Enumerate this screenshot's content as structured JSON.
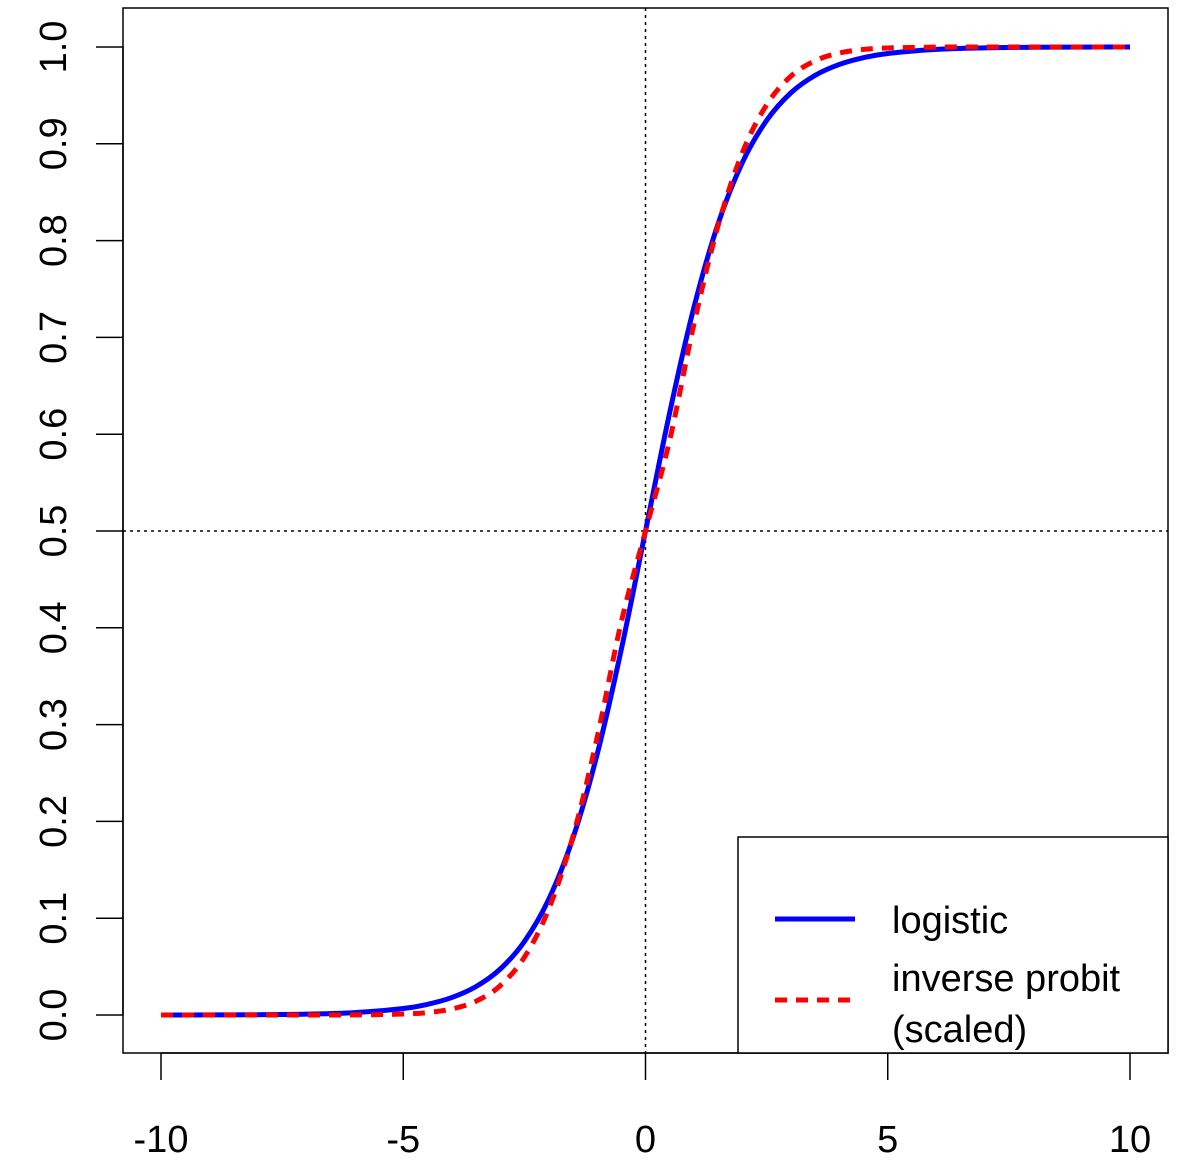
{
  "chart_data": {
    "type": "line",
    "title": "",
    "xlabel": "",
    "ylabel": "",
    "xlim": [
      -10,
      10
    ],
    "ylim": [
      0,
      1
    ],
    "x_ticks": [
      -10,
      -5,
      0,
      5,
      10
    ],
    "x_tick_labels": [
      "-10",
      "-5",
      "0",
      "5",
      "10"
    ],
    "y_ticks": [
      0,
      0.1,
      0.2,
      0.3,
      0.4,
      0.5,
      0.6,
      0.7,
      0.8,
      0.9,
      1.0
    ],
    "y_tick_labels": [
      "0.0",
      "0.1",
      "0.2",
      "0.3",
      "0.4",
      "0.5",
      "0.6",
      "0.7",
      "0.8",
      "0.9",
      "1.0"
    ],
    "reference_lines": [
      {
        "orientation": "vertical",
        "x": 0,
        "style": "dotted"
      },
      {
        "orientation": "horizontal",
        "y": 0.5,
        "style": "dotted"
      }
    ],
    "grid": false,
    "legend": {
      "position": "bottom-right",
      "entries": [
        {
          "label": "logistic",
          "color": "#0000ff",
          "style": "solid"
        },
        {
          "label": "inverse probit",
          "label_line2": "(scaled)",
          "color": "#ff0000",
          "style": "dashed"
        }
      ]
    },
    "series": [
      {
        "name": "logistic",
        "color": "#0000ff",
        "style": "solid",
        "x": [
          -10,
          -9,
          -8,
          -7,
          -6,
          -5,
          -4.5,
          -4,
          -3.5,
          -3,
          -2.5,
          -2,
          -1.5,
          -1,
          -0.5,
          0,
          0.5,
          1,
          1.5,
          2,
          2.5,
          3,
          3.5,
          4,
          4.5,
          5,
          6,
          7,
          8,
          9,
          10
        ],
        "y": [
          0.0,
          0.0001,
          0.0003,
          0.0009,
          0.0025,
          0.0067,
          0.011,
          0.018,
          0.0293,
          0.0474,
          0.0759,
          0.1192,
          0.1824,
          0.2689,
          0.3775,
          0.5,
          0.6225,
          0.7311,
          0.8176,
          0.8808,
          0.9241,
          0.9526,
          0.9707,
          0.982,
          0.989,
          0.9933,
          0.9975,
          0.9991,
          0.9997,
          0.9999,
          1.0
        ]
      },
      {
        "name": "inverse probit\n(scaled)",
        "color": "#ff0000",
        "style": "dashed",
        "x": [
          -10,
          -9,
          -8,
          -7,
          -6,
          -5,
          -4.5,
          -4,
          -3.5,
          -3,
          -2.5,
          -2,
          -1.5,
          -1,
          -0.5,
          0,
          0.5,
          1,
          1.5,
          2,
          2.5,
          3,
          3.5,
          4,
          4.5,
          5,
          6,
          7,
          8,
          9,
          10
        ],
        "y": [
          0.0,
          0.0,
          0.0,
          0.0,
          0.0001,
          0.001,
          0.0025,
          0.0062,
          0.0142,
          0.0302,
          0.0597,
          0.1091,
          0.1841,
          0.2862,
          0.406,
          0.5,
          0.594,
          0.7138,
          0.8159,
          0.8909,
          0.9403,
          0.9698,
          0.9858,
          0.9938,
          0.9975,
          0.999,
          0.9999,
          1.0,
          1.0,
          1.0,
          1.0
        ]
      }
    ]
  }
}
